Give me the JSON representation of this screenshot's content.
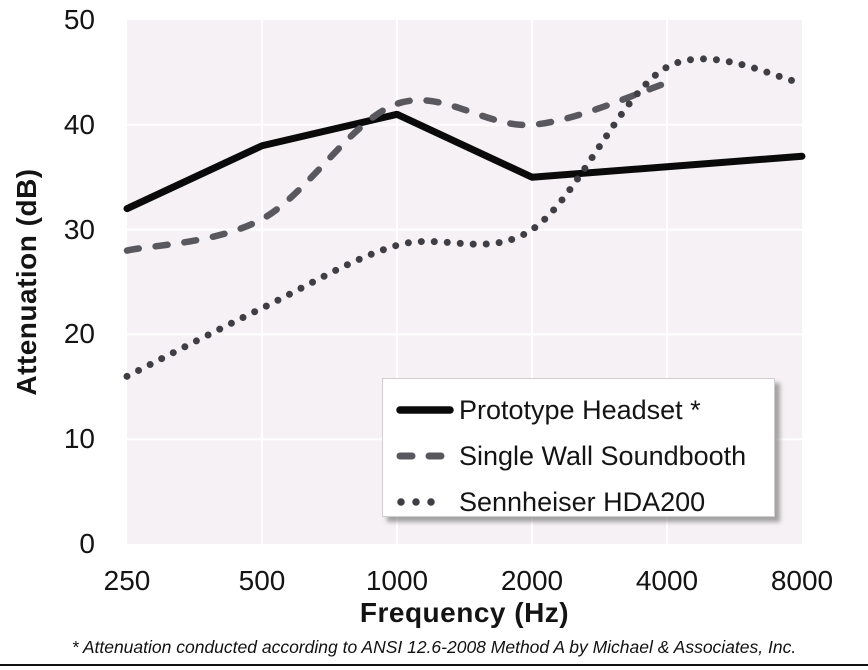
{
  "chart_data": {
    "type": "line",
    "title": "",
    "x_axis": {
      "title": "Frequency (Hz)",
      "categories": [
        "250",
        "500",
        "1000",
        "2000",
        "4000",
        "8000"
      ]
    },
    "y_axis": {
      "title": "Attenuation (dB)",
      "min": 0,
      "max": 50,
      "tick_step": 10,
      "ticks": [
        50,
        40,
        30,
        20,
        10,
        0
      ]
    },
    "series": [
      {
        "name": "Prototype Headset *",
        "line_style": "solid",
        "color": "#0a0a0a",
        "smooth": false,
        "values": [
          32,
          38,
          41,
          35,
          36,
          37
        ]
      },
      {
        "name": "Single Wall Soundbooth",
        "line_style": "dashed",
        "color": "#58585e",
        "smooth": true,
        "values": [
          28,
          31,
          42,
          40,
          44,
          null
        ]
      },
      {
        "name": "Sennheiser HDA200",
        "line_style": "dotted",
        "color": "#3e3e44",
        "smooth": true,
        "values": [
          16,
          22.5,
          28.5,
          30,
          45.5,
          44
        ]
      }
    ],
    "legend": {
      "position": "inside-bottom-right",
      "entries": [
        "Prototype Headset *",
        "Single Wall Soundbooth",
        "Sennheiser HDA200"
      ]
    },
    "grid": "major-both",
    "plot_background_color": "#f5f1f4",
    "gridline_color": "#ffffff"
  },
  "footnote": "* Attenuation conducted according to ANSI 12.6-2008 Method A by Michael & Associates, Inc."
}
